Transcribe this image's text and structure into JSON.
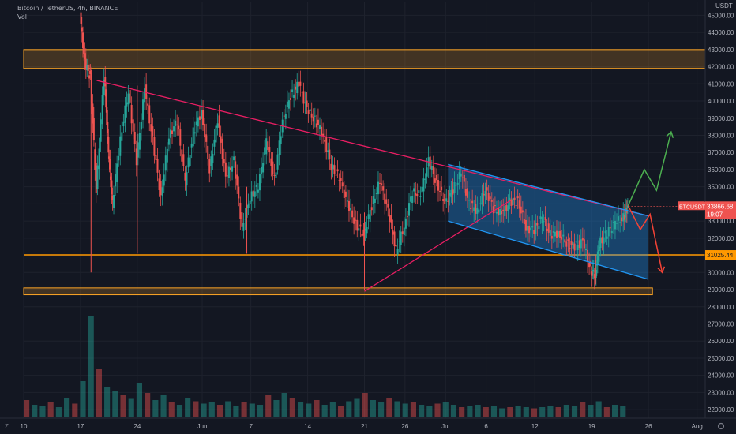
{
  "header": {
    "symbol_line": "Bitcoin / TetherUS, 4h, BINANCE",
    "volume_label": "Vol"
  },
  "chart_data": {
    "type": "candlestick",
    "symbol": "BTCUSDT",
    "currency": "USDT",
    "y_ticks": [
      22000,
      23000,
      24000,
      25000,
      26000,
      27000,
      28000,
      29000,
      30000,
      31000,
      32000,
      33000,
      34000,
      35000,
      36000,
      37000,
      38000,
      39000,
      40000,
      41000,
      42000,
      43000,
      44000,
      45000
    ],
    "y_tick_labels": [
      "22000.00",
      "23000.00",
      "24000.00",
      "25000.00",
      "26000.00",
      "27000.00",
      "28000.00",
      "29000.00",
      "30000.00",
      "31000.00",
      "32000.00",
      "33000.00",
      "34000.00",
      "35000.00",
      "36000.00",
      "37000.00",
      "38000.00",
      "39000.00",
      "40000.00",
      "41000.00",
      "42000.00",
      "43000.00",
      "44000.00",
      "45000.00"
    ],
    "ylim": [
      21500,
      45800
    ],
    "xlim": [
      0,
      84
    ],
    "x_ticks": [
      {
        "day": 0,
        "label": "10"
      },
      {
        "day": 7,
        "label": "17"
      },
      {
        "day": 14,
        "label": "24"
      },
      {
        "day": 22,
        "label": "Jun"
      },
      {
        "day": 28,
        "label": "7"
      },
      {
        "day": 35,
        "label": "14"
      },
      {
        "day": 42,
        "label": "21"
      },
      {
        "day": 47,
        "label": "26"
      },
      {
        "day": 52,
        "label": "Jul"
      },
      {
        "day": 57,
        "label": "6"
      },
      {
        "day": 63,
        "label": "12"
      },
      {
        "day": 70,
        "label": "19"
      },
      {
        "day": 77,
        "label": "26"
      },
      {
        "day": 83,
        "label": "Aug"
      }
    ],
    "price_label": {
      "symbol": "BTCUSDT",
      "value": 33866.68,
      "text": "33866.68",
      "countdown": "19:07"
    },
    "level_label": {
      "value": 31025.44,
      "text": "31025.44"
    },
    "path": [
      [
        7,
        45000
      ],
      [
        7.6,
        42200
      ],
      [
        8.3,
        41400
      ],
      [
        9,
        34800
      ],
      [
        10,
        41500
      ],
      [
        10.5,
        37000
      ],
      [
        11,
        34000
      ],
      [
        12,
        37800
      ],
      [
        13,
        40600
      ],
      [
        14,
        36500
      ],
      [
        15,
        40700
      ],
      [
        16,
        37700
      ],
      [
        17,
        34400
      ],
      [
        18,
        38000
      ],
      [
        19,
        38800
      ],
      [
        20,
        35300
      ],
      [
        21,
        38200
      ],
      [
        22,
        39400
      ],
      [
        23,
        36000
      ],
      [
        24,
        38900
      ],
      [
        25,
        35500
      ],
      [
        26,
        36500
      ],
      [
        27,
        32600
      ],
      [
        28,
        34400
      ],
      [
        29,
        35000
      ],
      [
        30,
        37700
      ],
      [
        31,
        35400
      ],
      [
        32,
        38900
      ],
      [
        33,
        40300
      ],
      [
        34,
        41000
      ],
      [
        35,
        39500
      ],
      [
        36,
        38900
      ],
      [
        37,
        38000
      ],
      [
        38,
        36200
      ],
      [
        39,
        35500
      ],
      [
        40,
        34000
      ],
      [
        41,
        32800
      ],
      [
        42,
        32200
      ],
      [
        43,
        33900
      ],
      [
        44,
        35300
      ],
      [
        45,
        33600
      ],
      [
        46,
        31300
      ],
      [
        47,
        32700
      ],
      [
        48,
        34700
      ],
      [
        49,
        34500
      ],
      [
        50,
        36500
      ],
      [
        51,
        35200
      ],
      [
        52,
        34100
      ],
      [
        53,
        34800
      ],
      [
        54,
        35800
      ],
      [
        55,
        34000
      ],
      [
        56,
        33600
      ],
      [
        57,
        34900
      ],
      [
        58,
        33700
      ],
      [
        59,
        33400
      ],
      [
        60,
        34100
      ],
      [
        61,
        34200
      ],
      [
        62,
        32600
      ],
      [
        63,
        32500
      ],
      [
        64,
        33200
      ],
      [
        65,
        32200
      ],
      [
        66,
        32300
      ],
      [
        67,
        31700
      ],
      [
        68,
        31500
      ],
      [
        69,
        31800
      ],
      [
        70,
        30100
      ],
      [
        70.5,
        29900
      ],
      [
        71,
        31700
      ],
      [
        72,
        32300
      ],
      [
        73,
        32900
      ],
      [
        74,
        33200
      ],
      [
        74.5,
        33866.68
      ]
    ],
    "wicks": [
      {
        "day": 8.3,
        "low": 30000,
        "high": 41800
      },
      {
        "day": 14,
        "low": 31100,
        "high": 40900
      },
      {
        "day": 27.5,
        "low": 31100,
        "high": 35000
      },
      {
        "day": 42,
        "low": 29000,
        "high": 33500
      },
      {
        "day": 70.5,
        "low": 29300,
        "high": 31000
      }
    ],
    "volume": [
      0.14,
      0.1,
      0.09,
      0.12,
      0.08,
      0.16,
      0.11,
      0.3,
      0.85,
      0.4,
      0.25,
      0.22,
      0.18,
      0.15,
      0.28,
      0.2,
      0.14,
      0.18,
      0.12,
      0.1,
      0.16,
      0.13,
      0.11,
      0.12,
      0.1,
      0.13,
      0.09,
      0.12,
      0.11,
      0.1,
      0.18,
      0.14,
      0.2,
      0.16,
      0.12,
      0.11,
      0.14,
      0.1,
      0.12,
      0.09,
      0.13,
      0.15,
      0.2,
      0.14,
      0.12,
      0.16,
      0.13,
      0.11,
      0.12,
      0.1,
      0.09,
      0.11,
      0.12,
      0.1,
      0.08,
      0.09,
      0.1,
      0.08,
      0.09,
      0.07,
      0.08,
      0.09,
      0.08,
      0.07,
      0.08,
      0.09,
      0.08,
      0.1,
      0.09,
      0.12,
      0.1,
      0.13,
      0.08,
      0.1,
      0.09
    ],
    "zones": [
      {
        "from_day": 0,
        "to_day": 84,
        "low": 41900,
        "high": 43000,
        "color": "#ffa726"
      },
      {
        "from_day": 0,
        "to_day": 77.5,
        "low": 28700,
        "high": 29100,
        "color": "#ffa726"
      }
    ],
    "hlines": [
      {
        "value": 31025.44,
        "color": "#ff9800"
      }
    ],
    "trendlines": [
      {
        "p1": [
          9,
          41200
        ],
        "p2": [
          77,
          33300
        ],
        "color": "#e91e63"
      },
      {
        "p1": [
          42,
          28900
        ],
        "p2": [
          60,
          34200
        ],
        "color": "#e91e63"
      },
      {
        "p1": [
          52.3,
          36300
        ],
        "p2": [
          77,
          33300
        ],
        "color": "#2196f3"
      },
      {
        "p1": [
          52.3,
          33000
        ],
        "p2": [
          77,
          29600
        ],
        "color": "#2196f3"
      }
    ],
    "channel": {
      "top": [
        [
          52.3,
          36300
        ],
        [
          77,
          33300
        ]
      ],
      "bottom": [
        [
          52.3,
          33000
        ],
        [
          77,
          29600
        ]
      ],
      "fill": "#2196f3"
    },
    "projections": [
      {
        "points": [
          [
            74.5,
            33900
          ],
          [
            76.5,
            36000
          ],
          [
            78,
            34800
          ],
          [
            79.8,
            38200
          ]
        ],
        "color": "#4caf50"
      },
      {
        "points": [
          [
            74.5,
            33900
          ],
          [
            76,
            32500
          ],
          [
            77.2,
            33400
          ],
          [
            78.7,
            30000
          ]
        ],
        "color": "#f44336"
      }
    ],
    "colors": {
      "bull": "#26a69a",
      "bear": "#ef5350",
      "grid": "#1e222d",
      "axis_text": "#b2b5be",
      "background": "#131722"
    }
  }
}
